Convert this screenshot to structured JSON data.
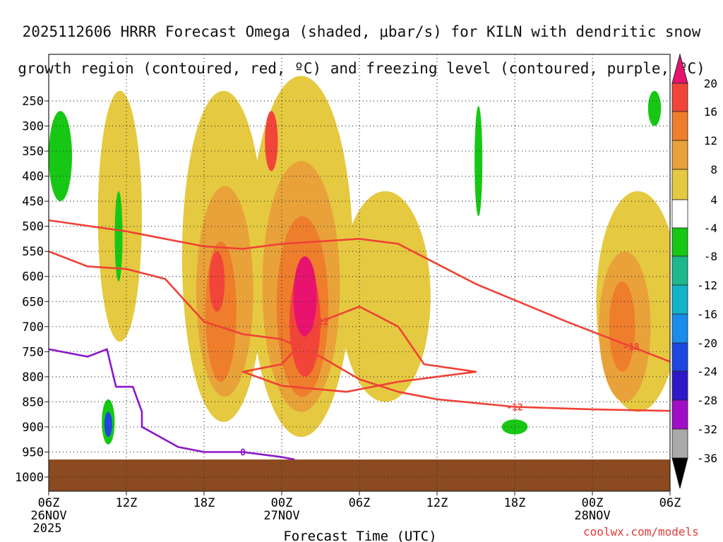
{
  "chart_data": {
    "type": "heatmap",
    "title_line1": "2025112606 HRRR Forecast Omega (shaded, μbar/s) for KILN with dendritic snow",
    "title_line2": "growth region (contoured, red, ºC) and freezing level (contoured, purple, ºC)",
    "xlabel": "Forecast Time (UTC)",
    "ylabel": "",
    "x_range_hours": [
      0,
      48
    ],
    "y_range_mb": [
      1000,
      200
    ],
    "x_ticks": [
      {
        "h": 0,
        "label": "06Z",
        "date": "26NOV",
        "year": "2025"
      },
      {
        "h": 6,
        "label": "12Z"
      },
      {
        "h": 12,
        "label": "18Z"
      },
      {
        "h": 18,
        "label": "00Z",
        "date": "27NOV"
      },
      {
        "h": 24,
        "label": "06Z"
      },
      {
        "h": 30,
        "label": "12Z"
      },
      {
        "h": 36,
        "label": "18Z"
      },
      {
        "h": 42,
        "label": "00Z",
        "date": "28NOV"
      },
      {
        "h": 48,
        "label": "06Z"
      }
    ],
    "y_ticks": [
      250,
      300,
      350,
      400,
      450,
      500,
      550,
      600,
      650,
      700,
      750,
      800,
      850,
      900,
      950,
      1000
    ],
    "colorbar": {
      "labels": [
        "20",
        "16",
        "12",
        "8",
        "4",
        "-4",
        "-8",
        "-12",
        "-16",
        "-20",
        "-24",
        "-28",
        "-32",
        "-36"
      ],
      "colors": [
        "#e8126f",
        "#f2453a",
        "#ee7d2c",
        "#e9a23a",
        "#e5c940",
        "#e6d93a",
        "#ffffff",
        "#16c814",
        "#1bb98b",
        "#13b4c8",
        "#1a8ceb",
        "#1e46e0",
        "#2e18c8",
        "#6a0fc0",
        "#a10ec8",
        "#a9a9a9",
        "#000000"
      ]
    },
    "shading": [
      {
        "level": 4,
        "h": 5.5,
        "p": 480,
        "dh": 1.7,
        "dp": 250
      },
      {
        "level": 4,
        "h": 13.5,
        "p": 560,
        "dh": 3.2,
        "dp": 330
      },
      {
        "level": 4,
        "h": 19.5,
        "p": 560,
        "dh": 4.0,
        "dp": 360
      },
      {
        "level": 4,
        "h": 26.0,
        "p": 640,
        "dh": 3.5,
        "dp": 210
      },
      {
        "level": 4,
        "h": 45.5,
        "p": 650,
        "dh": 3.2,
        "dp": 220
      },
      {
        "level": 8,
        "h": 13.6,
        "p": 630,
        "dh": 2.2,
        "dp": 210
      },
      {
        "level": 8,
        "h": 19.5,
        "p": 620,
        "dh": 3.0,
        "dp": 250
      },
      {
        "level": 8,
        "h": 44.5,
        "p": 700,
        "dh": 2.0,
        "dp": 150
      },
      {
        "level": 12,
        "h": 13.3,
        "p": 670,
        "dh": 1.2,
        "dp": 140
      },
      {
        "level": 12,
        "h": 19.6,
        "p": 660,
        "dh": 2.0,
        "dp": 180
      },
      {
        "level": 12,
        "h": 44.3,
        "p": 700,
        "dh": 1.0,
        "dp": 90
      },
      {
        "level": 16,
        "h": 13.0,
        "p": 610,
        "dh": 0.6,
        "dp": 60
      },
      {
        "level": 16,
        "h": 19.8,
        "p": 690,
        "dh": 1.2,
        "dp": 110
      },
      {
        "level": 16,
        "h": 17.2,
        "p": 330,
        "dh": 0.5,
        "dp": 60
      },
      {
        "level": 20,
        "h": 19.8,
        "p": 640,
        "dh": 0.9,
        "dp": 80
      },
      {
        "level": -4,
        "h": 0.9,
        "p": 360,
        "dh": 0.9,
        "dp": 90
      },
      {
        "level": -4,
        "h": 5.4,
        "p": 520,
        "dh": 0.3,
        "dp": 90
      },
      {
        "level": -4,
        "h": 33.2,
        "p": 370,
        "dh": 0.3,
        "dp": 110
      },
      {
        "level": -4,
        "h": 36.0,
        "p": 900,
        "dh": 1.0,
        "dp": 15
      },
      {
        "level": -4,
        "h": 46.8,
        "p": 265,
        "dh": 0.5,
        "dp": 35
      },
      {
        "level": -4,
        "h": 4.6,
        "p": 890,
        "dh": 0.5,
        "dp": 45
      },
      {
        "level": -12,
        "h": 4.6,
        "p": 895,
        "dh": 0.3,
        "dp": 25
      }
    ],
    "dgz_contours": [
      {
        "label": "-12",
        "points": [
          [
            0,
            550
          ],
          [
            3,
            580
          ],
          [
            6,
            585
          ],
          [
            9,
            605
          ],
          [
            12,
            690
          ],
          [
            15,
            715
          ],
          [
            18,
            725
          ],
          [
            21,
            760
          ],
          [
            24,
            805
          ],
          [
            27,
            830
          ],
          [
            30,
            845
          ],
          [
            36,
            860
          ],
          [
            42,
            865
          ],
          [
            48,
            868
          ]
        ]
      },
      {
        "label": "-12",
        "points": [
          [
            18,
            775
          ],
          [
            21,
            690
          ],
          [
            24,
            660
          ],
          [
            27,
            700
          ],
          [
            29,
            775
          ],
          [
            33,
            790
          ],
          [
            27,
            810
          ],
          [
            23,
            830
          ],
          [
            18,
            818
          ],
          [
            15,
            790
          ],
          [
            18,
            775
          ]
        ]
      },
      {
        "label": "-18",
        "points": [
          [
            0,
            488
          ],
          [
            6,
            510
          ],
          [
            12,
            540
          ],
          [
            15,
            545
          ],
          [
            18,
            535
          ],
          [
            24,
            525
          ],
          [
            27,
            535
          ],
          [
            33,
            615
          ],
          [
            40,
            690
          ],
          [
            45,
            740
          ],
          [
            48,
            770
          ]
        ]
      }
    ],
    "freezing_level": {
      "label": "0",
      "points": [
        [
          0,
          745
        ],
        [
          3,
          760
        ],
        [
          4.5,
          745
        ],
        [
          5.2,
          820
        ],
        [
          6.5,
          820
        ],
        [
          7.2,
          870
        ],
        [
          7.2,
          900
        ],
        [
          10,
          940
        ],
        [
          12,
          950
        ],
        [
          15,
          950
        ],
        [
          18,
          960
        ],
        [
          19,
          965
        ]
      ]
    },
    "ground_mb": 965
  },
  "credit": "coolwx.com/models"
}
